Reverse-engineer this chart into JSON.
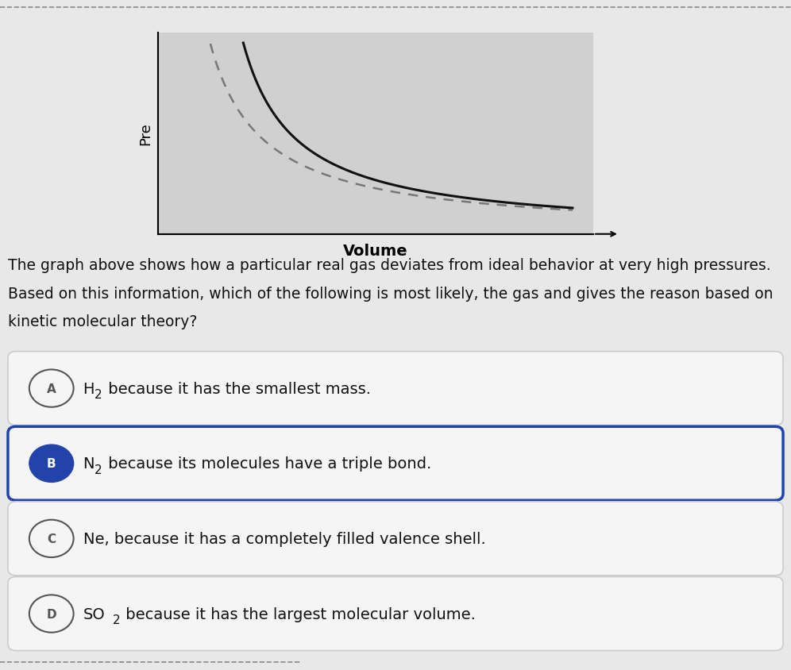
{
  "background_color": "#e8e8e8",
  "graph_bg": "#d0d0d0",
  "graph_ylabel": "Pre",
  "graph_xlabel": "Volume",
  "description_line1": "The graph above shows how a particular real gas deviates from ideal behavior at very high pressures.",
  "description_line2": "Based on this information, which of the following is most likely, the gas and gives the reason based on",
  "description_line3": "kinetic molecular theory?",
  "options": [
    {
      "letter": "A",
      "selected": false
    },
    {
      "letter": "B",
      "selected": true
    },
    {
      "letter": "C",
      "selected": false
    },
    {
      "letter": "D",
      "selected": false
    }
  ],
  "option_box_color": "#f5f5f5",
  "option_box_selected_border": "#2244aa",
  "option_box_normal_border": "#cccccc",
  "option_letter_selected_bg": "#2244aa",
  "option_letter_selected_fg": "#ffffff",
  "option_letter_normal_border": "#555555",
  "option_letter_normal_fg": "#555555",
  "text_color": "#111111",
  "description_fontsize": 13.5,
  "option_fontsize": 14
}
